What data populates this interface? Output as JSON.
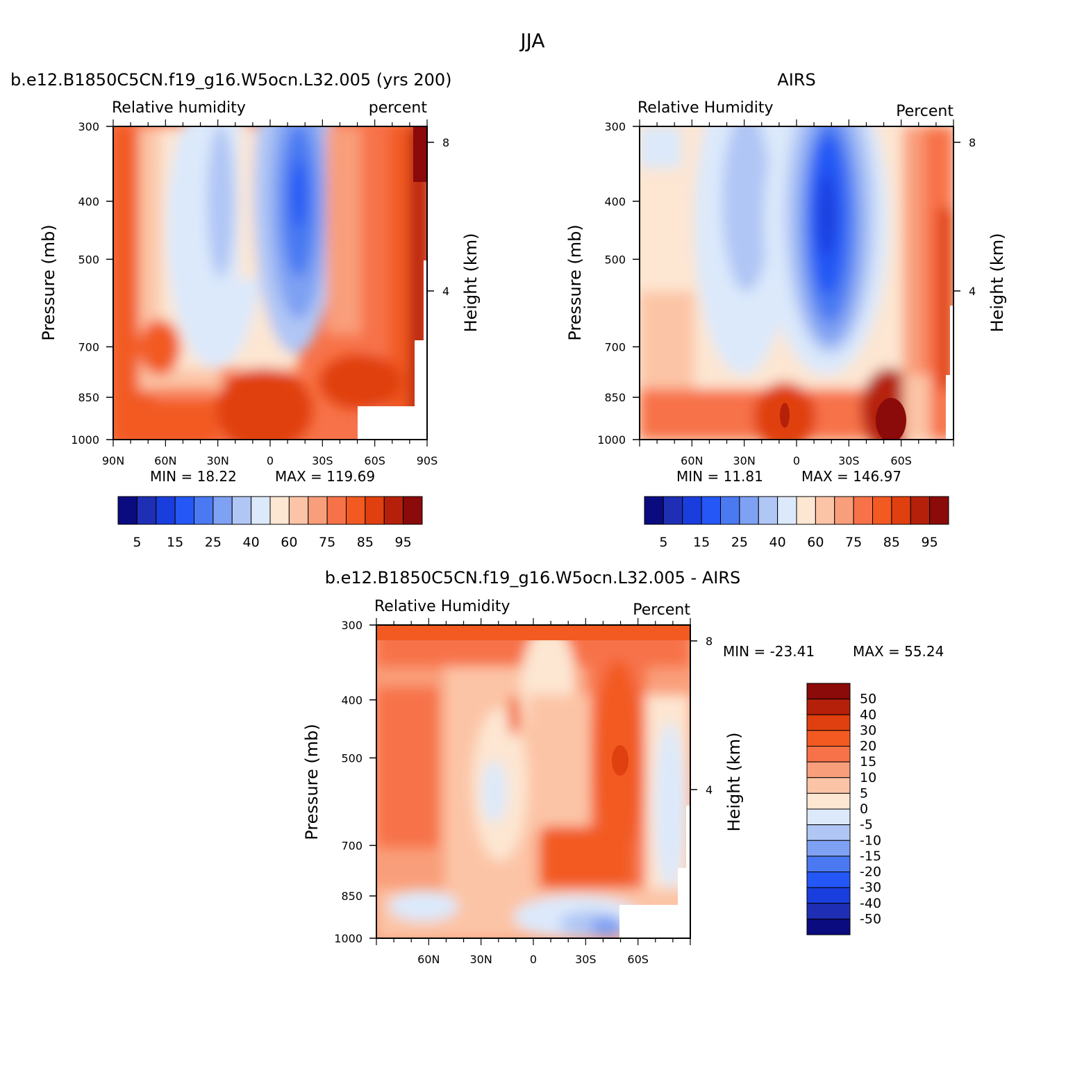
{
  "figure_title": "JJA",
  "chart_data": [
    {
      "type": "heatmap",
      "panel": "model",
      "title": "b.e12.B1850C5CN.f19_g16.W5ocn.L32.005 (yrs 200)",
      "left_label": "Relative humidity",
      "right_label": "percent",
      "ylabel": "Pressure (mb)",
      "ylabel2": "Height (km)",
      "x_ticks": [
        "90N",
        "60N",
        "30N",
        "0",
        "30S",
        "60S",
        "90S"
      ],
      "y_ticks": [
        "300",
        "400",
        "500",
        "700",
        "850",
        "1000"
      ],
      "height_ticks": [
        "8",
        "4"
      ],
      "xlim": [
        90,
        -90
      ],
      "ylim": [
        1000,
        300
      ],
      "min_text": "MIN =   18.22",
      "max_text": "MAX =  119.69",
      "min": 18.22,
      "max": 119.69,
      "colorbar_levels": [
        "5",
        "15",
        "25",
        "40",
        "60",
        "75",
        "85",
        "95"
      ],
      "colors": [
        "#0b0b80",
        "#1f2fb5",
        "#1a3ede",
        "#2457f5",
        "#4a79f2",
        "#7fa1f3",
        "#b0c6f5",
        "#dce9fb",
        "#fde6d2",
        "#fcc4a6",
        "#f99e7a",
        "#f77249",
        "#f25a21",
        "#e0400f",
        "#b5200a",
        "#8b0a0a"
      ]
    },
    {
      "type": "heatmap",
      "panel": "obs",
      "title": "AIRS",
      "left_label": "Relative Humidity",
      "right_label": "Percent",
      "ylabel": "Pressure (mb)",
      "ylabel2": "Height (km)",
      "x_ticks": [
        "60N",
        "30N",
        "0",
        "30S",
        "60S"
      ],
      "y_ticks": [
        "300",
        "400",
        "500",
        "700",
        "850",
        "1000"
      ],
      "height_ticks": [
        "8",
        "4"
      ],
      "min_text": "MIN =   11.81",
      "max_text": "MAX =  146.97",
      "min": 11.81,
      "max": 146.97,
      "colorbar_levels": [
        "5",
        "15",
        "25",
        "40",
        "60",
        "75",
        "85",
        "95"
      ]
    },
    {
      "type": "heatmap",
      "panel": "difference",
      "title": "b.e12.B1850C5CN.f19_g16.W5ocn.L32.005 - AIRS",
      "left_label": "Relative Humidity",
      "right_label": "Percent",
      "ylabel": "Pressure (mb)",
      "ylabel2": "Height (km)",
      "x_ticks": [
        "60N",
        "30N",
        "0",
        "30S",
        "60S"
      ],
      "y_ticks": [
        "300",
        "400",
        "500",
        "700",
        "850",
        "1000"
      ],
      "height_ticks": [
        "8",
        "4"
      ],
      "min_text": "MIN = -23.41",
      "max_text": "MAX =   55.24",
      "min": -23.41,
      "max": 55.24,
      "colorbar_levels": [
        "50",
        "40",
        "30",
        "20",
        "15",
        "10",
        "5",
        "0",
        "-5",
        "-10",
        "-15",
        "-20",
        "-30",
        "-40",
        "-50"
      ]
    }
  ]
}
